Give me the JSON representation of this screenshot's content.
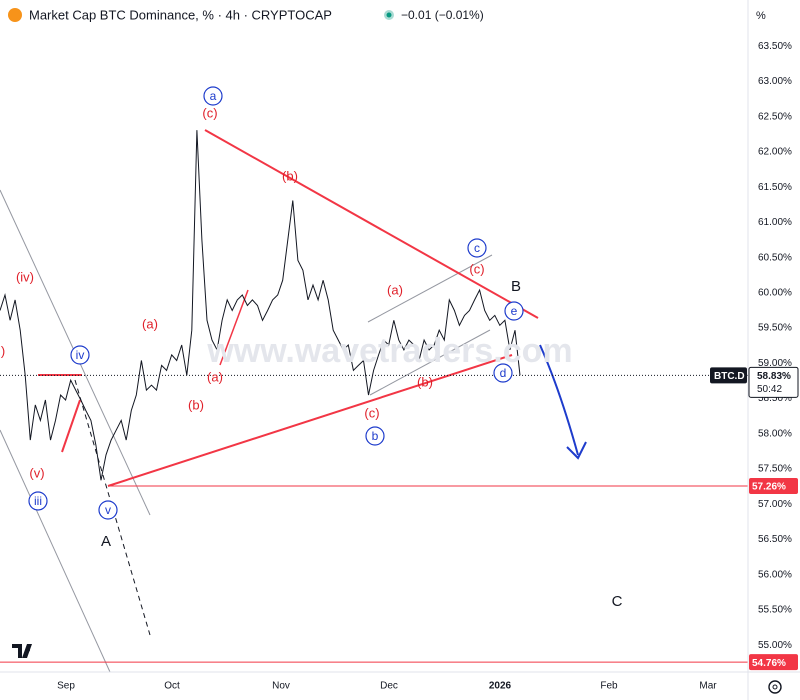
{
  "chart_data": {
    "type": "line",
    "title": "Market Cap BTC Dominance, % · 4h · CRYPTOCAP",
    "change": "−0.01 (−0.01%)",
    "unit": "%",
    "watermark": "www.wavetraders.com",
    "series": [
      {
        "name": "BTC.D",
        "color": "#131722",
        "values": [
          59.75,
          59.97,
          59.61,
          59.9,
          59.47,
          58.83,
          57.91,
          58.41,
          58.19,
          58.48,
          57.91,
          58.19,
          58.55,
          58.48,
          58.76,
          58.62,
          58.48,
          58.33,
          58.19,
          57.84,
          57.34,
          57.7,
          57.91,
          58.05,
          58.19,
          57.91,
          58.33,
          58.55,
          59.04,
          58.62,
          58.69,
          58.62,
          58.97,
          58.9,
          59.12,
          59.04,
          59.26,
          58.83,
          59.47,
          62.31,
          60.75,
          59.61,
          59.33,
          59.19,
          59.61,
          59.9,
          59.75,
          59.9,
          59.97,
          59.82,
          59.9,
          59.82,
          59.61,
          59.75,
          59.9,
          59.97,
          60.18,
          60.75,
          61.31,
          60.46,
          60.32,
          59.9,
          60.11,
          59.9,
          60.18,
          59.9,
          59.47,
          59.33,
          59.19,
          59.26,
          58.9,
          58.97,
          59.04,
          58.55,
          58.9,
          59.12,
          59.33,
          59.26,
          59.61,
          59.33,
          59.19,
          59.33,
          59.26,
          59.04,
          59.33,
          59.19,
          59.26,
          59.47,
          59.33,
          59.9,
          59.75,
          59.54,
          59.68,
          59.75,
          59.9,
          60.04,
          59.75,
          59.61,
          59.68,
          59.54,
          59.61,
          59.19,
          59.47,
          58.83
        ]
      }
    ],
    "ylim": [
      54.62,
      63.73
    ],
    "yticks": [
      {
        "value": 55.0,
        "label": "55.00%"
      },
      {
        "value": 55.5,
        "label": "55.50%"
      },
      {
        "value": 56.0,
        "label": "56.00%"
      },
      {
        "value": 56.5,
        "label": "56.50%"
      },
      {
        "value": 57.0,
        "label": "57.00%"
      },
      {
        "value": 57.5,
        "label": "57.50%"
      },
      {
        "value": 58.0,
        "label": "58.00%"
      },
      {
        "value": 58.5,
        "label": "58.50%"
      },
      {
        "value": 59.0,
        "label": "59.00%"
      },
      {
        "value": 59.5,
        "label": "59.50%"
      },
      {
        "value": 60.0,
        "label": "60.00%"
      },
      {
        "value": 60.5,
        "label": "60.50%"
      },
      {
        "value": 61.0,
        "label": "61.00%"
      },
      {
        "value": 61.5,
        "label": "61.50%"
      },
      {
        "value": 62.0,
        "label": "62.00%"
      },
      {
        "value": 62.5,
        "label": "62.50%"
      },
      {
        "value": 63.0,
        "label": "63.00%"
      },
      {
        "value": 63.5,
        "label": "63.50%"
      }
    ],
    "grid": false,
    "xtick_labels": [
      "Sep",
      "Oct",
      "Nov",
      "Dec",
      "2026",
      "Feb",
      "Mar"
    ],
    "last_price": {
      "value": 58.83,
      "label": "58.83%",
      "countdown": "50:42"
    },
    "levels": [
      {
        "value": 57.26,
        "label": "57.26%",
        "color": "#f23645"
      },
      {
        "value": 54.76,
        "label": "54.76%",
        "color": "#f23645"
      }
    ],
    "annotations": [
      {
        "text": ")",
        "style": "red"
      },
      {
        "text": "(iv)",
        "style": "red"
      },
      {
        "text": "(v)",
        "style": "red"
      },
      {
        "text": "(a)",
        "style": "red"
      },
      {
        "text": "(b)",
        "style": "red"
      },
      {
        "text": "(a)",
        "style": "red"
      },
      {
        "text": "(c)",
        "style": "red"
      },
      {
        "text": "(b)",
        "style": "red"
      },
      {
        "text": "(c)",
        "style": "red"
      },
      {
        "text": "(a)",
        "style": "red"
      },
      {
        "text": "(b)",
        "style": "red"
      },
      {
        "text": "(c)",
        "style": "red"
      },
      {
        "text": "a",
        "style": "circle"
      },
      {
        "text": "iv",
        "style": "circle"
      },
      {
        "text": "iii",
        "style": "circle"
      },
      {
        "text": "v",
        "style": "circle"
      },
      {
        "text": "b",
        "style": "circle"
      },
      {
        "text": "c",
        "style": "circle"
      },
      {
        "text": "e",
        "style": "circle"
      },
      {
        "text": "d",
        "style": "circle"
      },
      {
        "text": "A",
        "style": "black"
      },
      {
        "text": "B",
        "style": "black"
      },
      {
        "text": "C",
        "style": "black"
      }
    ]
  }
}
